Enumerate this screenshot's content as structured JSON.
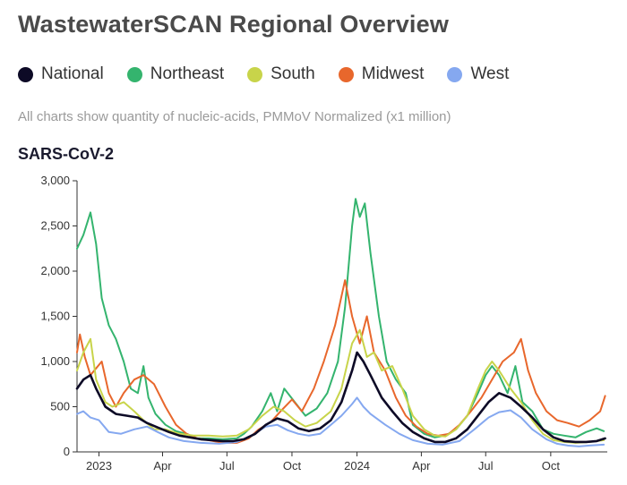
{
  "page": {
    "title": "WastewaterSCAN Regional Overview",
    "note": "All charts show quantity of nucleic-acids, PMMoV Normalized (x1 million)"
  },
  "legend": [
    {
      "label": "National",
      "color": "#0d0a26"
    },
    {
      "label": "Northeast",
      "color": "#34b46e"
    },
    {
      "label": "South",
      "color": "#c8d44a"
    },
    {
      "label": "Midwest",
      "color": "#e8672c"
    },
    {
      "label": "West",
      "color": "#85a8f0"
    }
  ],
  "chart_data": {
    "type": "line",
    "title": "SARS-CoV-2",
    "xlabel": "",
    "ylabel": "",
    "grid": false,
    "legend_position": "top",
    "xlim": [
      "2022-12-01",
      "2024-12-20"
    ],
    "ylim": [
      0,
      3000
    ],
    "yticks": [
      0,
      500,
      1000,
      1500,
      2000,
      2500,
      3000
    ],
    "ytick_labels": [
      "0",
      "500",
      "1,000",
      "1,500",
      "2,000",
      "2,500",
      "3,000"
    ],
    "xticks": [
      {
        "date": "2023-01-01",
        "label": "2023"
      },
      {
        "date": "2023-04-01",
        "label": "Apr"
      },
      {
        "date": "2023-07-01",
        "label": "Jul"
      },
      {
        "date": "2023-10-01",
        "label": "Oct"
      },
      {
        "date": "2024-01-01",
        "label": "2024"
      },
      {
        "date": "2024-04-01",
        "label": "Apr"
      },
      {
        "date": "2024-07-01",
        "label": "Jul"
      },
      {
        "date": "2024-10-01",
        "label": "Oct"
      }
    ],
    "series": [
      {
        "name": "Northeast",
        "color": "#34b46e",
        "points": [
          [
            "2022-12-01",
            2250
          ],
          [
            "2022-12-10",
            2400
          ],
          [
            "2022-12-20",
            2650
          ],
          [
            "2022-12-28",
            2300
          ],
          [
            "2023-01-05",
            1700
          ],
          [
            "2023-01-15",
            1400
          ],
          [
            "2023-01-25",
            1250
          ],
          [
            "2023-02-05",
            1000
          ],
          [
            "2023-02-15",
            700
          ],
          [
            "2023-02-25",
            650
          ],
          [
            "2023-03-05",
            950
          ],
          [
            "2023-03-12",
            600
          ],
          [
            "2023-03-22",
            420
          ],
          [
            "2023-04-05",
            300
          ],
          [
            "2023-04-20",
            230
          ],
          [
            "2023-05-05",
            200
          ],
          [
            "2023-05-20",
            150
          ],
          [
            "2023-06-05",
            150
          ],
          [
            "2023-06-25",
            140
          ],
          [
            "2023-07-15",
            150
          ],
          [
            "2023-07-25",
            200
          ],
          [
            "2023-08-05",
            280
          ],
          [
            "2023-08-20",
            450
          ],
          [
            "2023-09-01",
            650
          ],
          [
            "2023-09-10",
            450
          ],
          [
            "2023-09-20",
            700
          ],
          [
            "2023-10-05",
            550
          ],
          [
            "2023-10-20",
            400
          ],
          [
            "2023-11-05",
            480
          ],
          [
            "2023-11-20",
            650
          ],
          [
            "2023-12-05",
            1000
          ],
          [
            "2023-12-15",
            1600
          ],
          [
            "2023-12-25",
            2500
          ],
          [
            "2023-12-30",
            2800
          ],
          [
            "2024-01-05",
            2600
          ],
          [
            "2024-01-12",
            2750
          ],
          [
            "2024-01-20",
            2200
          ],
          [
            "2024-02-01",
            1500
          ],
          [
            "2024-02-12",
            1000
          ],
          [
            "2024-02-25",
            800
          ],
          [
            "2024-03-10",
            650
          ],
          [
            "2024-03-20",
            300
          ],
          [
            "2024-04-05",
            200
          ],
          [
            "2024-04-20",
            160
          ],
          [
            "2024-05-05",
            180
          ],
          [
            "2024-05-20",
            250
          ],
          [
            "2024-06-05",
            400
          ],
          [
            "2024-06-20",
            650
          ],
          [
            "2024-07-01",
            850
          ],
          [
            "2024-07-10",
            950
          ],
          [
            "2024-07-20",
            850
          ],
          [
            "2024-08-01",
            650
          ],
          [
            "2024-08-12",
            950
          ],
          [
            "2024-08-22",
            550
          ],
          [
            "2024-09-05",
            450
          ],
          [
            "2024-09-20",
            250
          ],
          [
            "2024-10-05",
            200
          ],
          [
            "2024-10-20",
            180
          ],
          [
            "2024-11-05",
            160
          ],
          [
            "2024-11-20",
            220
          ],
          [
            "2024-12-05",
            260
          ],
          [
            "2024-12-15",
            230
          ]
        ]
      },
      {
        "name": "Midwest",
        "color": "#e8672c",
        "points": [
          [
            "2022-12-01",
            1100
          ],
          [
            "2022-12-05",
            1300
          ],
          [
            "2022-12-12",
            1050
          ],
          [
            "2022-12-20",
            850
          ],
          [
            "2023-01-05",
            1000
          ],
          [
            "2023-01-15",
            650
          ],
          [
            "2023-01-25",
            500
          ],
          [
            "2023-02-05",
            650
          ],
          [
            "2023-02-20",
            800
          ],
          [
            "2023-03-05",
            850
          ],
          [
            "2023-03-20",
            750
          ],
          [
            "2023-04-05",
            500
          ],
          [
            "2023-04-20",
            300
          ],
          [
            "2023-05-05",
            200
          ],
          [
            "2023-05-20",
            150
          ],
          [
            "2023-06-05",
            130
          ],
          [
            "2023-06-25",
            100
          ],
          [
            "2023-07-15",
            100
          ],
          [
            "2023-08-01",
            150
          ],
          [
            "2023-08-15",
            250
          ],
          [
            "2023-09-01",
            330
          ],
          [
            "2023-09-15",
            450
          ],
          [
            "2023-10-01",
            580
          ],
          [
            "2023-10-15",
            450
          ],
          [
            "2023-11-01",
            700
          ],
          [
            "2023-11-15",
            1000
          ],
          [
            "2023-12-01",
            1400
          ],
          [
            "2023-12-15",
            1900
          ],
          [
            "2023-12-25",
            1500
          ],
          [
            "2024-01-05",
            1200
          ],
          [
            "2024-01-15",
            1500
          ],
          [
            "2024-01-25",
            1100
          ],
          [
            "2024-02-10",
            900
          ],
          [
            "2024-02-25",
            600
          ],
          [
            "2024-03-10",
            400
          ],
          [
            "2024-03-25",
            280
          ],
          [
            "2024-04-10",
            200
          ],
          [
            "2024-04-25",
            180
          ],
          [
            "2024-05-10",
            200
          ],
          [
            "2024-05-25",
            300
          ],
          [
            "2024-06-10",
            450
          ],
          [
            "2024-06-25",
            600
          ],
          [
            "2024-07-10",
            800
          ],
          [
            "2024-07-25",
            1000
          ],
          [
            "2024-08-10",
            1100
          ],
          [
            "2024-08-20",
            1250
          ],
          [
            "2024-08-30",
            900
          ],
          [
            "2024-09-10",
            650
          ],
          [
            "2024-09-25",
            450
          ],
          [
            "2024-10-10",
            350
          ],
          [
            "2024-10-25",
            320
          ],
          [
            "2024-11-10",
            280
          ],
          [
            "2024-11-25",
            350
          ],
          [
            "2024-12-10",
            450
          ],
          [
            "2024-12-17",
            620
          ]
        ]
      },
      {
        "name": "South",
        "color": "#c8d44a",
        "points": [
          [
            "2022-12-01",
            900
          ],
          [
            "2022-12-10",
            1100
          ],
          [
            "2022-12-20",
            1250
          ],
          [
            "2022-12-28",
            800
          ],
          [
            "2023-01-10",
            550
          ],
          [
            "2023-01-20",
            500
          ],
          [
            "2023-02-05",
            550
          ],
          [
            "2023-02-20",
            450
          ],
          [
            "2023-03-05",
            350
          ],
          [
            "2023-03-20",
            250
          ],
          [
            "2023-04-05",
            250
          ],
          [
            "2023-04-25",
            200
          ],
          [
            "2023-05-15",
            180
          ],
          [
            "2023-06-05",
            180
          ],
          [
            "2023-06-25",
            170
          ],
          [
            "2023-07-15",
            180
          ],
          [
            "2023-08-01",
            250
          ],
          [
            "2023-08-20",
            400
          ],
          [
            "2023-09-05",
            500
          ],
          [
            "2023-09-20",
            450
          ],
          [
            "2023-10-05",
            350
          ],
          [
            "2023-10-20",
            280
          ],
          [
            "2023-11-05",
            320
          ],
          [
            "2023-11-25",
            450
          ],
          [
            "2023-12-10",
            700
          ],
          [
            "2023-12-25",
            1200
          ],
          [
            "2024-01-05",
            1350
          ],
          [
            "2024-01-15",
            1050
          ],
          [
            "2024-01-25",
            1100
          ],
          [
            "2024-02-05",
            900
          ],
          [
            "2024-02-20",
            950
          ],
          [
            "2024-03-05",
            700
          ],
          [
            "2024-03-20",
            400
          ],
          [
            "2024-04-05",
            250
          ],
          [
            "2024-04-20",
            180
          ],
          [
            "2024-05-05",
            170
          ],
          [
            "2024-05-20",
            250
          ],
          [
            "2024-06-05",
            400
          ],
          [
            "2024-06-20",
            700
          ],
          [
            "2024-07-01",
            900
          ],
          [
            "2024-07-10",
            1000
          ],
          [
            "2024-07-20",
            900
          ],
          [
            "2024-08-05",
            700
          ],
          [
            "2024-08-20",
            550
          ],
          [
            "2024-09-05",
            350
          ],
          [
            "2024-09-20",
            200
          ],
          [
            "2024-10-05",
            130
          ],
          [
            "2024-10-20",
            110
          ],
          [
            "2024-11-05",
            100
          ],
          [
            "2024-11-25",
            110
          ],
          [
            "2024-12-15",
            130
          ]
        ]
      },
      {
        "name": "West",
        "color": "#85a8f0",
        "points": [
          [
            "2022-12-01",
            420
          ],
          [
            "2022-12-10",
            450
          ],
          [
            "2022-12-20",
            380
          ],
          [
            "2023-01-01",
            350
          ],
          [
            "2023-01-15",
            220
          ],
          [
            "2023-02-01",
            200
          ],
          [
            "2023-02-20",
            250
          ],
          [
            "2023-03-10",
            280
          ],
          [
            "2023-03-25",
            220
          ],
          [
            "2023-04-10",
            160
          ],
          [
            "2023-05-01",
            120
          ],
          [
            "2023-05-25",
            100
          ],
          [
            "2023-06-20",
            90
          ],
          [
            "2023-07-15",
            110
          ],
          [
            "2023-08-05",
            180
          ],
          [
            "2023-08-25",
            280
          ],
          [
            "2023-09-10",
            300
          ],
          [
            "2023-09-25",
            240
          ],
          [
            "2023-10-10",
            200
          ],
          [
            "2023-10-25",
            180
          ],
          [
            "2023-11-10",
            200
          ],
          [
            "2023-11-25",
            300
          ],
          [
            "2023-12-10",
            400
          ],
          [
            "2023-12-25",
            530
          ],
          [
            "2024-01-01",
            600
          ],
          [
            "2024-01-10",
            500
          ],
          [
            "2024-01-20",
            420
          ],
          [
            "2024-02-10",
            300
          ],
          [
            "2024-03-01",
            200
          ],
          [
            "2024-03-20",
            130
          ],
          [
            "2024-04-10",
            90
          ],
          [
            "2024-05-01",
            80
          ],
          [
            "2024-05-25",
            120
          ],
          [
            "2024-06-15",
            250
          ],
          [
            "2024-07-05",
            380
          ],
          [
            "2024-07-20",
            440
          ],
          [
            "2024-08-05",
            460
          ],
          [
            "2024-08-20",
            380
          ],
          [
            "2024-09-05",
            250
          ],
          [
            "2024-09-25",
            140
          ],
          [
            "2024-10-10",
            90
          ],
          [
            "2024-10-25",
            70
          ],
          [
            "2024-11-10",
            60
          ],
          [
            "2024-11-25",
            70
          ],
          [
            "2024-12-15",
            80
          ]
        ]
      },
      {
        "name": "National",
        "color": "#0d0a26",
        "points": [
          [
            "2022-12-01",
            700
          ],
          [
            "2022-12-10",
            800
          ],
          [
            "2022-12-20",
            850
          ],
          [
            "2022-12-28",
            700
          ],
          [
            "2023-01-10",
            500
          ],
          [
            "2023-01-25",
            420
          ],
          [
            "2023-02-10",
            400
          ],
          [
            "2023-02-25",
            380
          ],
          [
            "2023-03-10",
            320
          ],
          [
            "2023-03-25",
            270
          ],
          [
            "2023-04-10",
            220
          ],
          [
            "2023-04-25",
            180
          ],
          [
            "2023-05-10",
            160
          ],
          [
            "2023-05-25",
            140
          ],
          [
            "2023-06-10",
            130
          ],
          [
            "2023-06-25",
            120
          ],
          [
            "2023-07-10",
            120
          ],
          [
            "2023-07-25",
            140
          ],
          [
            "2023-08-10",
            200
          ],
          [
            "2023-08-25",
            300
          ],
          [
            "2023-09-10",
            370
          ],
          [
            "2023-09-25",
            340
          ],
          [
            "2023-10-10",
            260
          ],
          [
            "2023-10-25",
            230
          ],
          [
            "2023-11-10",
            260
          ],
          [
            "2023-11-25",
            350
          ],
          [
            "2023-12-10",
            550
          ],
          [
            "2023-12-25",
            900
          ],
          [
            "2024-01-01",
            1100
          ],
          [
            "2024-01-10",
            1000
          ],
          [
            "2024-01-20",
            850
          ],
          [
            "2024-02-05",
            600
          ],
          [
            "2024-02-20",
            450
          ],
          [
            "2024-03-05",
            320
          ],
          [
            "2024-03-20",
            220
          ],
          [
            "2024-04-05",
            150
          ],
          [
            "2024-04-20",
            110
          ],
          [
            "2024-05-05",
            110
          ],
          [
            "2024-05-20",
            150
          ],
          [
            "2024-06-05",
            250
          ],
          [
            "2024-06-20",
            400
          ],
          [
            "2024-07-05",
            550
          ],
          [
            "2024-07-20",
            650
          ],
          [
            "2024-08-05",
            600
          ],
          [
            "2024-08-20",
            500
          ],
          [
            "2024-09-05",
            380
          ],
          [
            "2024-09-20",
            250
          ],
          [
            "2024-10-05",
            160
          ],
          [
            "2024-10-20",
            120
          ],
          [
            "2024-11-05",
            110
          ],
          [
            "2024-11-20",
            110
          ],
          [
            "2024-12-05",
            120
          ],
          [
            "2024-12-17",
            150
          ]
        ]
      }
    ]
  }
}
